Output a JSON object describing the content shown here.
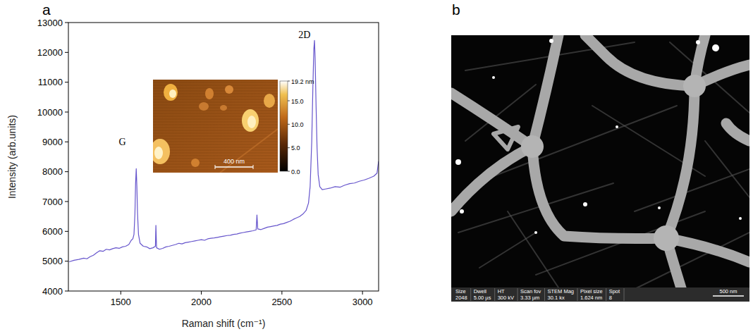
{
  "chart_data": {
    "type": "line",
    "panel_label": "a",
    "x_label": "Raman shift (cm⁻¹)",
    "y_label": "Intensity (arb.units)",
    "color": "#6655cc",
    "x": [
      1180,
      1210,
      1240,
      1270,
      1290,
      1310,
      1330,
      1350,
      1370,
      1390,
      1410,
      1430,
      1450,
      1470,
      1490,
      1510,
      1530,
      1550,
      1565,
      1575,
      1582,
      1588,
      1592,
      1596,
      1600,
      1604,
      1610,
      1620,
      1640,
      1660,
      1680,
      1700,
      1715,
      1718,
      1722,
      1740,
      1760,
      1780,
      1800,
      1820,
      1840,
      1860,
      1880,
      1900,
      1920,
      1940,
      1960,
      1980,
      2000,
      2020,
      2040,
      2060,
      2080,
      2100,
      2120,
      2140,
      2160,
      2180,
      2200,
      2220,
      2240,
      2260,
      2280,
      2300,
      2320,
      2340,
      2345,
      2350,
      2370,
      2390,
      2410,
      2430,
      2450,
      2470,
      2490,
      2510,
      2530,
      2550,
      2570,
      2590,
      2610,
      2630,
      2650,
      2665,
      2675,
      2685,
      2692,
      2698,
      2702,
      2706,
      2712,
      2718,
      2725,
      2735,
      2750,
      2770,
      2800,
      2830,
      2860,
      2890,
      2920,
      2950,
      2980,
      3010,
      3040,
      3070,
      3090,
      3100
    ],
    "values": [
      4980,
      5030,
      5060,
      5100,
      5080,
      5150,
      5200,
      5280,
      5350,
      5330,
      5400,
      5380,
      5420,
      5450,
      5430,
      5480,
      5500,
      5560,
      5700,
      5750,
      5900,
      6600,
      7600,
      8100,
      7500,
      6600,
      5900,
      5600,
      5500,
      5480,
      5420,
      5450,
      5500,
      6200,
      5450,
      5400,
      5430,
      5480,
      5500,
      5530,
      5560,
      5600,
      5580,
      5620,
      5640,
      5660,
      5680,
      5700,
      5720,
      5700,
      5750,
      5770,
      5780,
      5800,
      5820,
      5840,
      5860,
      5870,
      5900,
      5910,
      5940,
      5960,
      5980,
      6000,
      6020,
      6050,
      6550,
      6080,
      6060,
      6100,
      6140,
      6160,
      6180,
      6200,
      6240,
      6260,
      6300,
      6340,
      6400,
      6450,
      6500,
      6580,
      6700,
      6950,
      7500,
      9000,
      10800,
      12100,
      12400,
      11800,
      10200,
      8800,
      7900,
      7500,
      7400,
      7420,
      7450,
      7500,
      7480,
      7550,
      7600,
      7620,
      7680,
      7720,
      7780,
      7850,
      7950,
      8350
    ],
    "xlim": [
      1175,
      3100
    ],
    "xticks": [
      1500,
      2000,
      2500,
      3000
    ],
    "ylim": [
      4000,
      13000
    ],
    "yticks": [
      4000,
      5000,
      6000,
      7000,
      8000,
      9000,
      10000,
      11000,
      12000,
      13000
    ],
    "annotations": [
      {
        "text": "G",
        "x": 1510,
        "y": 9000
      },
      {
        "text": "2D",
        "x": 2640,
        "y": 12600
      }
    ]
  },
  "inset": {
    "scale_bar": "400 nm",
    "colorbar": {
      "range": [
        0,
        19.2
      ],
      "ticks": [
        {
          "value": 0,
          "label": "0.0"
        },
        {
          "value": 5,
          "label": "5.0"
        },
        {
          "value": 10,
          "label": "10.0"
        },
        {
          "value": 15,
          "label": "15.0"
        },
        {
          "value": 19.2,
          "label": "19.2 nm"
        }
      ]
    }
  },
  "image": {
    "panel_label": "b",
    "scale_bar": "500 nm",
    "info_bar": [
      {
        "head": "Size",
        "value": "2048"
      },
      {
        "head": "Dwell",
        "value": "5.00 µs"
      },
      {
        "head": "HT",
        "value": "300 kV"
      },
      {
        "head": "Scan fov",
        "value": "3.33 µm"
      },
      {
        "head": "STEM Mag",
        "value": "30.1 kx"
      },
      {
        "head": "Pixel size",
        "value": "1.624 nm"
      },
      {
        "head": "Spot",
        "value": "8"
      }
    ]
  }
}
